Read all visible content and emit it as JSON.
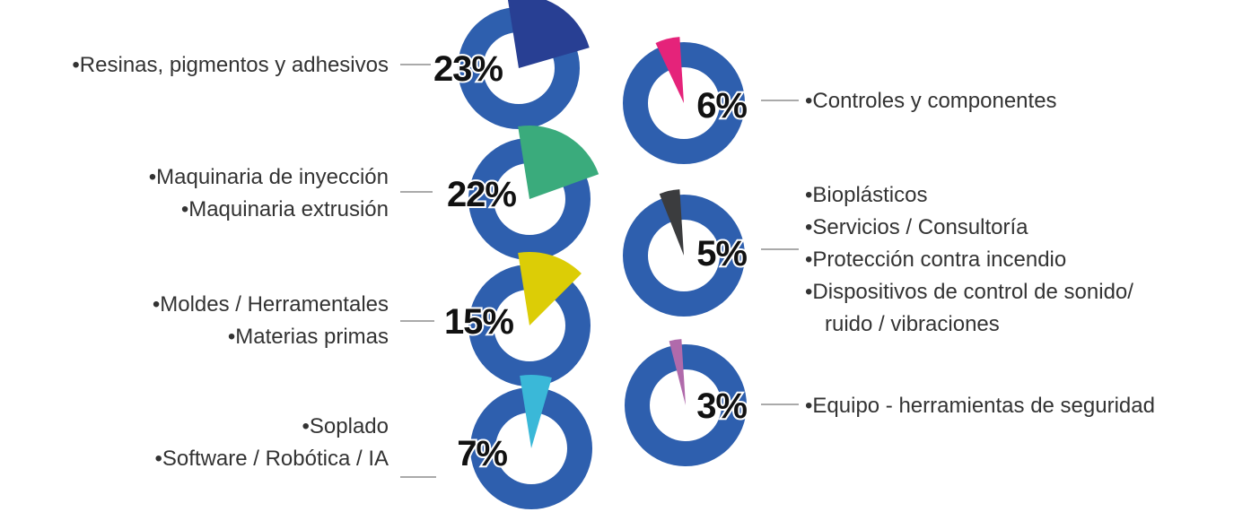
{
  "colors": {
    "ring": "#2e5fae",
    "text": "#111111",
    "label": "#333333",
    "connector": "#aaaaaa"
  },
  "chart_data": {
    "type": "pie",
    "items": [
      {
        "value": 23,
        "label_text": "23%",
        "color": "#283f93",
        "categories": [
          "Resinas, pigmentos y adhesivos"
        ]
      },
      {
        "value": 22,
        "label_text": "22%",
        "color": "#3aab7c",
        "categories": [
          "Maquinaria de inyección",
          "Maquinaria extrusión"
        ]
      },
      {
        "value": 15,
        "label_text": "15%",
        "color": "#dccd06",
        "categories": [
          "Moldes / Herramentales",
          "Materias primas"
        ]
      },
      {
        "value": 7,
        "label_text": "7%",
        "color": "#3ab8d8",
        "categories": [
          "Soplado",
          "Software / Robótica / IA"
        ]
      },
      {
        "value": 6,
        "label_text": "6%",
        "color": "#e5237a",
        "categories": [
          "Controles y componentes"
        ]
      },
      {
        "value": 5,
        "label_text": "5%",
        "color": "#3b3c3e",
        "categories": [
          "Bioplásticos",
          "Servicios / Consultoría",
          "Protección contra incendio",
          "Dispositivos de control de sonido/",
          "ruido / vibraciones"
        ]
      },
      {
        "value": 3,
        "label_text": "3%",
        "color": "#b06aab",
        "categories": [
          "Equipo - herramientas de seguridad"
        ]
      }
    ]
  }
}
